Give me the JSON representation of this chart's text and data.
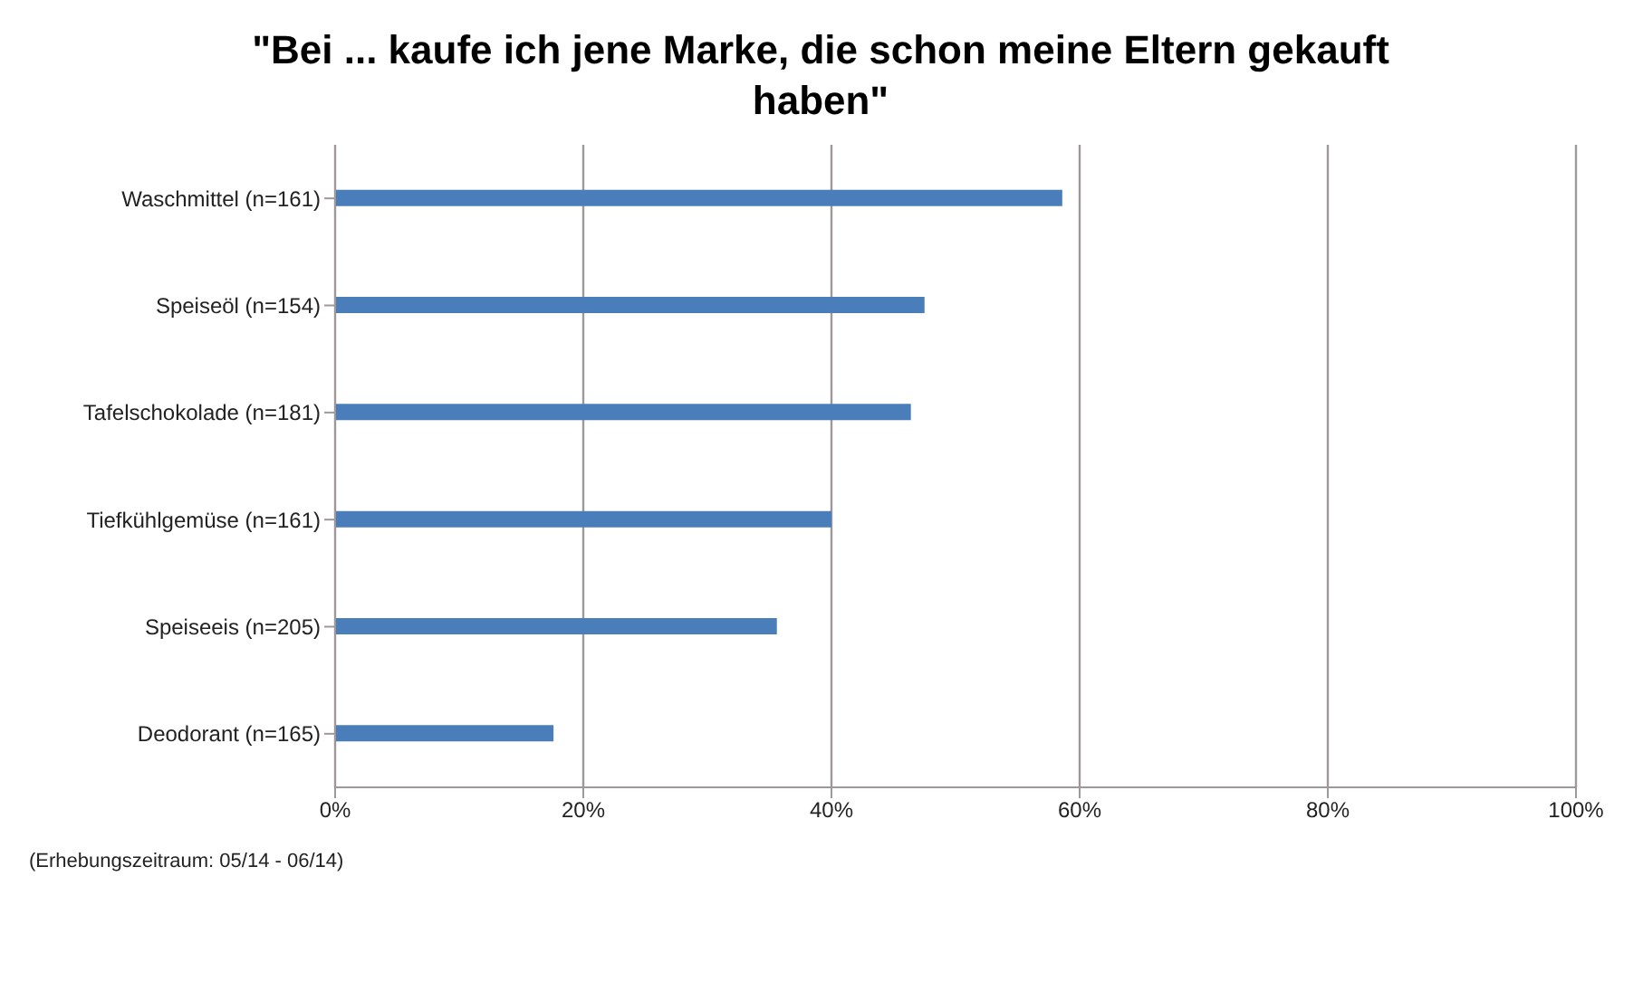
{
  "chart_data": {
    "type": "bar",
    "orientation": "horizontal",
    "title": "\"Bei ... kaufe ich jene Marke, die schon meine Eltern gekauft haben\"",
    "categories": [
      "Waschmittel (n=161)",
      "Speiseöl (n=154)",
      "Tafelschokolade (n=181)",
      "Tiefkühlgemüse (n=161)",
      "Speiseeis (n=205)",
      "Deodorant (n=165)"
    ],
    "values": [
      58.6,
      47.5,
      46.4,
      40,
      35.6,
      17.6
    ],
    "color": "#4a7ebb",
    "xlim": [
      0,
      100
    ],
    "xticks": [
      {
        "value": 0,
        "label": "0%"
      },
      {
        "value": 20,
        "label": "20%"
      },
      {
        "value": 40,
        "label": "40%"
      },
      {
        "value": 60,
        "label": "60%"
      },
      {
        "value": 80,
        "label": "80%"
      },
      {
        "value": 100,
        "label": "100%"
      }
    ],
    "grid": "x",
    "annotations": [
      "(Erhebungszeitraum: 05/14 - 06/14)"
    ]
  }
}
